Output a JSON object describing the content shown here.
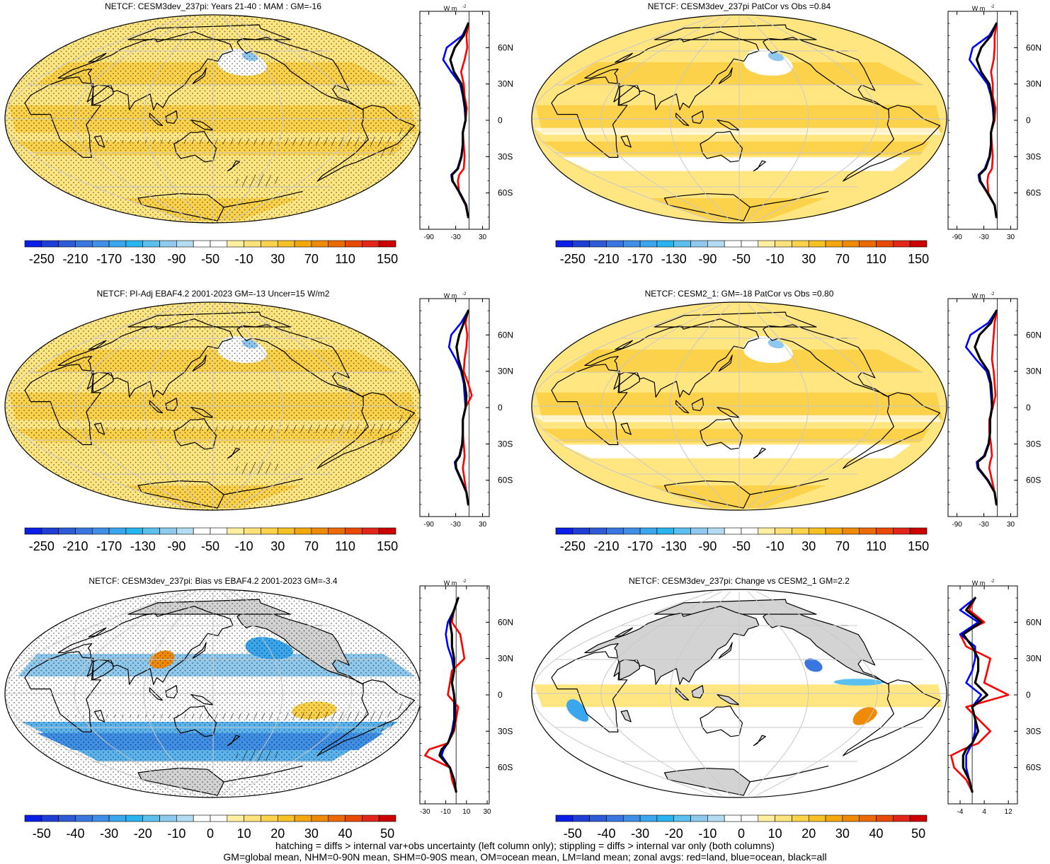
{
  "colors": {
    "red_land": "#ff0000",
    "blue_ocean": "#0000ff",
    "black_all": "#000000",
    "land_gray": "#d3d3d3",
    "ocean_white": "#ffffff",
    "yellow_light": "#ffe680",
    "yellow_mid": "#fcd24a",
    "light_blue": "#8fc8ee"
  },
  "colormap_negative": [
    "#0b1ee6",
    "#1f3ed6",
    "#2f5ad6",
    "#3a76e0",
    "#3f8fe6",
    "#3aa6ee",
    "#28b4ef",
    "#5cc0ee",
    "#8fcaee",
    "#b3dcf2"
  ],
  "colormap_positive": [
    "#fff0a0",
    "#ffe27a",
    "#fcd24a",
    "#f6c124",
    "#f2a80c",
    "#ef8a06",
    "#ec6a04",
    "#e84a04",
    "#e3261a",
    "#cc0000"
  ],
  "panels": [
    {
      "title": "NETCF: CESM3dev_237pi: Years 21-40 : MAM : GM=-16",
      "colorbar_labels": [
        "-250",
        "-210",
        "-170",
        "-130",
        "-90",
        "-50",
        "-10",
        "30",
        "70",
        "110",
        "150"
      ],
      "zonal_units": "W m",
      "zonal_units_sup": "-2",
      "zonal_xticks": [
        "-90",
        "-30",
        "30"
      ],
      "zonal_lat_labels": [
        "60N",
        "30N",
        "0",
        "30S",
        "60S"
      ],
      "map_style": "abs_strong_stipple"
    },
    {
      "title": "NETCF: CESM3dev_237pi PatCor vs Obs =0.84",
      "colorbar_labels": [
        "-250",
        "-210",
        "-170",
        "-130",
        "-90",
        "-50",
        "-10",
        "30",
        "70",
        "110",
        "150"
      ],
      "zonal_units": "W m",
      "zonal_units_sup": "-2",
      "zonal_xticks": [
        "-90",
        "-30",
        "30"
      ],
      "zonal_lat_labels": [
        "60N",
        "30N",
        "0",
        "30S",
        "60S"
      ],
      "map_style": "abs_light"
    },
    {
      "title": "NETCF: PI-Adj EBAF4.2 2001-2023 GM=-13 Uncer=15 W/m2",
      "colorbar_labels": [
        "-250",
        "-210",
        "-170",
        "-130",
        "-90",
        "-50",
        "-10",
        "30",
        "70",
        "110",
        "150"
      ],
      "zonal_units": "W m",
      "zonal_units_sup": "-2",
      "zonal_xticks": [
        "-90",
        "-30",
        "30"
      ],
      "zonal_lat_labels": [
        "60N",
        "30N",
        "0",
        "30S",
        "60S"
      ],
      "map_style": "abs_strong_stipple"
    },
    {
      "title": "NETCF: CESM2_1: GM=-18 PatCor vs Obs =0.80",
      "colorbar_labels": [
        "-250",
        "-210",
        "-170",
        "-130",
        "-90",
        "-50",
        "-10",
        "30",
        "70",
        "110",
        "150"
      ],
      "zonal_units": "W m",
      "zonal_units_sup": "-2",
      "zonal_xticks": [
        "-90",
        "-30",
        "30"
      ],
      "zonal_lat_labels": [
        "60N",
        "30N",
        "0",
        "30S",
        "60S"
      ],
      "map_style": "abs_light"
    },
    {
      "title": "NETCF: CESM3dev_237pi: Bias vs EBAF4.2 2001-2023 GM=-3.4",
      "colorbar_labels": [
        "-50",
        "-40",
        "-30",
        "-20",
        "-10",
        "0",
        "10",
        "20",
        "30",
        "40",
        "50"
      ],
      "zonal_units": "W m",
      "zonal_units_sup": "-2",
      "zonal_xticks": [
        "-30",
        "-10",
        "10",
        "30"
      ],
      "zonal_lat_labels": [
        "60N",
        "30N",
        "0",
        "30S",
        "60S"
      ],
      "map_style": "diff_bias"
    },
    {
      "title": "NETCF: CESM3dev_237pi: Change vs CESM2_1 GM=2.2",
      "colorbar_labels": [
        "-50",
        "-40",
        "-30",
        "-20",
        "-10",
        "0",
        "10",
        "20",
        "30",
        "40",
        "50"
      ],
      "zonal_units": "W m",
      "zonal_units_sup": "-2",
      "zonal_xticks": [
        "-4",
        "4",
        "12"
      ],
      "zonal_lat_labels": [
        "60N",
        "30N",
        "0",
        "30S",
        "60S"
      ],
      "map_style": "diff_change"
    }
  ],
  "chart_data": [
    {
      "type": "line",
      "title": "NETCF: CESM3dev_237pi: Years 21-40 : MAM : GM=-16",
      "xlabel": "W m-2",
      "xlim": [
        -110,
        45
      ],
      "ylim": [
        -90,
        90
      ],
      "y_ticks": [
        60,
        30,
        0,
        -30,
        -60
      ],
      "lat": [
        -80,
        -70,
        -60,
        -50,
        -45,
        -40,
        -30,
        -20,
        -10,
        0,
        10,
        20,
        30,
        40,
        50,
        60,
        70,
        80
      ],
      "series": [
        {
          "name": "land",
          "color": "red",
          "values": [
            -2,
            -8,
            -22,
            -25,
            -22,
            -12,
            -10,
            -12,
            -14,
            -8,
            -5,
            -10,
            -12,
            -18,
            -10,
            -4,
            -6,
            -1
          ]
        },
        {
          "name": "ocean",
          "color": "blue",
          "values": [
            -2,
            -6,
            -20,
            -38,
            -40,
            -26,
            -18,
            -14,
            -14,
            -8,
            -10,
            -14,
            -20,
            -40,
            -58,
            -50,
            -15,
            -2
          ]
        },
        {
          "name": "all",
          "color": "black",
          "values": [
            -2,
            -7,
            -21,
            -37,
            -38,
            -25,
            -17,
            -14,
            -14,
            -8,
            -8,
            -13,
            -17,
            -34,
            -42,
            -32,
            -12,
            -2
          ]
        }
      ]
    },
    {
      "type": "line",
      "title": "NETCF: CESM3dev_237pi PatCor vs Obs =0.84",
      "xlabel": "W m-2",
      "xlim": [
        -110,
        45
      ],
      "ylim": [
        -90,
        90
      ],
      "y_ticks": [
        60,
        30,
        0,
        -30,
        -60
      ],
      "lat": [
        -80,
        -70,
        -60,
        -50,
        -45,
        -40,
        -30,
        -20,
        -10,
        0,
        10,
        20,
        30,
        40,
        50,
        60,
        70,
        80
      ],
      "series": [
        {
          "name": "land",
          "color": "red",
          "values": [
            -2,
            -6,
            -20,
            -22,
            -20,
            -12,
            -10,
            -12,
            -14,
            -6,
            -4,
            -10,
            -10,
            -14,
            -8,
            -6,
            -6,
            -1
          ]
        },
        {
          "name": "ocean",
          "color": "blue",
          "values": [
            -2,
            -6,
            -22,
            -40,
            -42,
            -28,
            -18,
            -14,
            -14,
            -8,
            -10,
            -14,
            -22,
            -42,
            -62,
            -55,
            -18,
            -2
          ]
        },
        {
          "name": "all",
          "color": "black",
          "values": [
            -2,
            -6,
            -22,
            -38,
            -40,
            -26,
            -17,
            -14,
            -14,
            -8,
            -8,
            -13,
            -18,
            -36,
            -46,
            -36,
            -14,
            -2
          ]
        }
      ]
    },
    {
      "type": "line",
      "title": "NETCF: PI-Adj EBAF4.2 2001-2023 GM=-13 Uncer=15 W/m2",
      "xlabel": "W m-2",
      "xlim": [
        -110,
        45
      ],
      "ylim": [
        -90,
        90
      ],
      "y_ticks": [
        60,
        30,
        0,
        -30,
        -60
      ],
      "lat": [
        -80,
        -70,
        -60,
        -50,
        -45,
        -40,
        -30,
        -20,
        -10,
        0,
        10,
        20,
        30,
        40,
        50,
        60,
        70,
        80
      ],
      "series": [
        {
          "name": "land",
          "color": "red",
          "values": [
            -2,
            -6,
            -10,
            -14,
            -12,
            -10,
            -12,
            -14,
            -14,
            -8,
            6,
            -2,
            -12,
            -10,
            -6,
            -4,
            -8,
            -2
          ]
        },
        {
          "name": "ocean",
          "color": "blue",
          "values": [
            -2,
            -6,
            -18,
            -30,
            -32,
            -22,
            -16,
            -14,
            -14,
            -8,
            -10,
            -12,
            -18,
            -30,
            -45,
            -40,
            -18,
            -2
          ]
        },
        {
          "name": "all",
          "color": "black",
          "values": [
            -2,
            -6,
            -17,
            -29,
            -30,
            -21,
            -15,
            -14,
            -14,
            -8,
            -6,
            -10,
            -16,
            -24,
            -28,
            -22,
            -12,
            -2
          ]
        }
      ]
    },
    {
      "type": "line",
      "title": "NETCF: CESM2_1: GM=-18 PatCor vs Obs =0.80",
      "xlabel": "W m-2",
      "xlim": [
        -110,
        45
      ],
      "ylim": [
        -90,
        90
      ],
      "y_ticks": [
        60,
        30,
        0,
        -30,
        -60
      ],
      "lat": [
        -80,
        -70,
        -60,
        -50,
        -45,
        -40,
        -30,
        -20,
        -10,
        0,
        10,
        20,
        30,
        40,
        50,
        60,
        70,
        80
      ],
      "series": [
        {
          "name": "land",
          "color": "red",
          "values": [
            -2,
            -6,
            -12,
            -18,
            -16,
            -12,
            -14,
            -18,
            -18,
            -10,
            -4,
            -6,
            -8,
            -12,
            -10,
            -8,
            -6,
            -1
          ]
        },
        {
          "name": "ocean",
          "color": "blue",
          "values": [
            -2,
            -6,
            -22,
            -44,
            -46,
            -30,
            -20,
            -16,
            -16,
            -12,
            -14,
            -16,
            -24,
            -48,
            -70,
            -60,
            -20,
            -2
          ]
        },
        {
          "name": "all",
          "color": "black",
          "values": [
            -2,
            -6,
            -21,
            -42,
            -44,
            -28,
            -19,
            -16,
            -16,
            -12,
            -12,
            -14,
            -20,
            -38,
            -50,
            -40,
            -14,
            -2
          ]
        }
      ]
    },
    {
      "type": "line",
      "title": "NETCF: CESM3dev_237pi: Bias vs EBAF4.2 2001-2023 GM=-3.4",
      "xlabel": "W m-2",
      "xlim": [
        -35,
        32
      ],
      "ylim": [
        -90,
        90
      ],
      "y_ticks": [
        60,
        30,
        0,
        -30,
        -60
      ],
      "lat": [
        -80,
        -70,
        -60,
        -50,
        -45,
        -40,
        -30,
        -20,
        -10,
        0,
        10,
        20,
        30,
        40,
        50,
        60,
        70,
        80
      ],
      "series": [
        {
          "name": "land",
          "color": "red",
          "values": [
            0,
            -4,
            -6,
            -30,
            -26,
            -8,
            -2,
            0,
            2,
            -8,
            -6,
            -4,
            8,
            6,
            4,
            -4,
            -2,
            2
          ]
        },
        {
          "name": "ocean",
          "color": "blue",
          "values": [
            0,
            -2,
            -6,
            -14,
            -12,
            -8,
            -4,
            -2,
            -2,
            -2,
            -4,
            -2,
            -4,
            -8,
            -10,
            -8,
            -2,
            2
          ]
        },
        {
          "name": "all",
          "color": "black",
          "values": [
            0,
            -2,
            -6,
            -16,
            -14,
            -8,
            -3,
            -1,
            -1,
            -2,
            -4,
            -2,
            -2,
            -4,
            -4,
            -6,
            -2,
            2
          ]
        }
      ]
    },
    {
      "type": "line",
      "title": "NETCF: CESM3dev_237pi: Change vs CESM2_1 GM=2.2",
      "xlabel": "W m-2",
      "xlim": [
        -8,
        15
      ],
      "ylim": [
        -90,
        90
      ],
      "y_ticks": [
        60,
        30,
        0,
        -30,
        -60
      ],
      "lat": [
        -80,
        -70,
        -60,
        -50,
        -45,
        -40,
        -30,
        -20,
        -10,
        0,
        10,
        20,
        30,
        40,
        50,
        60,
        70,
        80
      ],
      "series": [
        {
          "name": "land",
          "color": "red",
          "values": [
            0,
            -2,
            -6,
            -7,
            -3,
            2,
            6,
            2,
            -2,
            12,
            4,
            5,
            6,
            -2,
            -4,
            4,
            -1,
            1
          ]
        },
        {
          "name": "ocean",
          "color": "blue",
          "values": [
            0,
            -1,
            -2,
            -2,
            -1,
            0,
            1,
            1,
            0,
            3,
            -2,
            0,
            1,
            1,
            -4,
            2,
            -4,
            1
          ]
        },
        {
          "name": "all",
          "color": "black",
          "values": [
            0,
            -1,
            -3,
            -3,
            -2,
            0,
            2,
            1,
            0,
            5,
            1,
            2,
            2,
            0,
            -3,
            3,
            -2,
            1
          ]
        }
      ]
    }
  ],
  "footer": {
    "line1": "hatching = diffs > internal var+obs uncertainty (left column only); stippling = diffs > internal var only (both columns)",
    "line2": "GM=global mean, NHM=0-90N mean, SHM=0-90S mean, OM=ocean mean, LM=land mean; zonal avgs: red=land, blue=ocean, black=all"
  }
}
